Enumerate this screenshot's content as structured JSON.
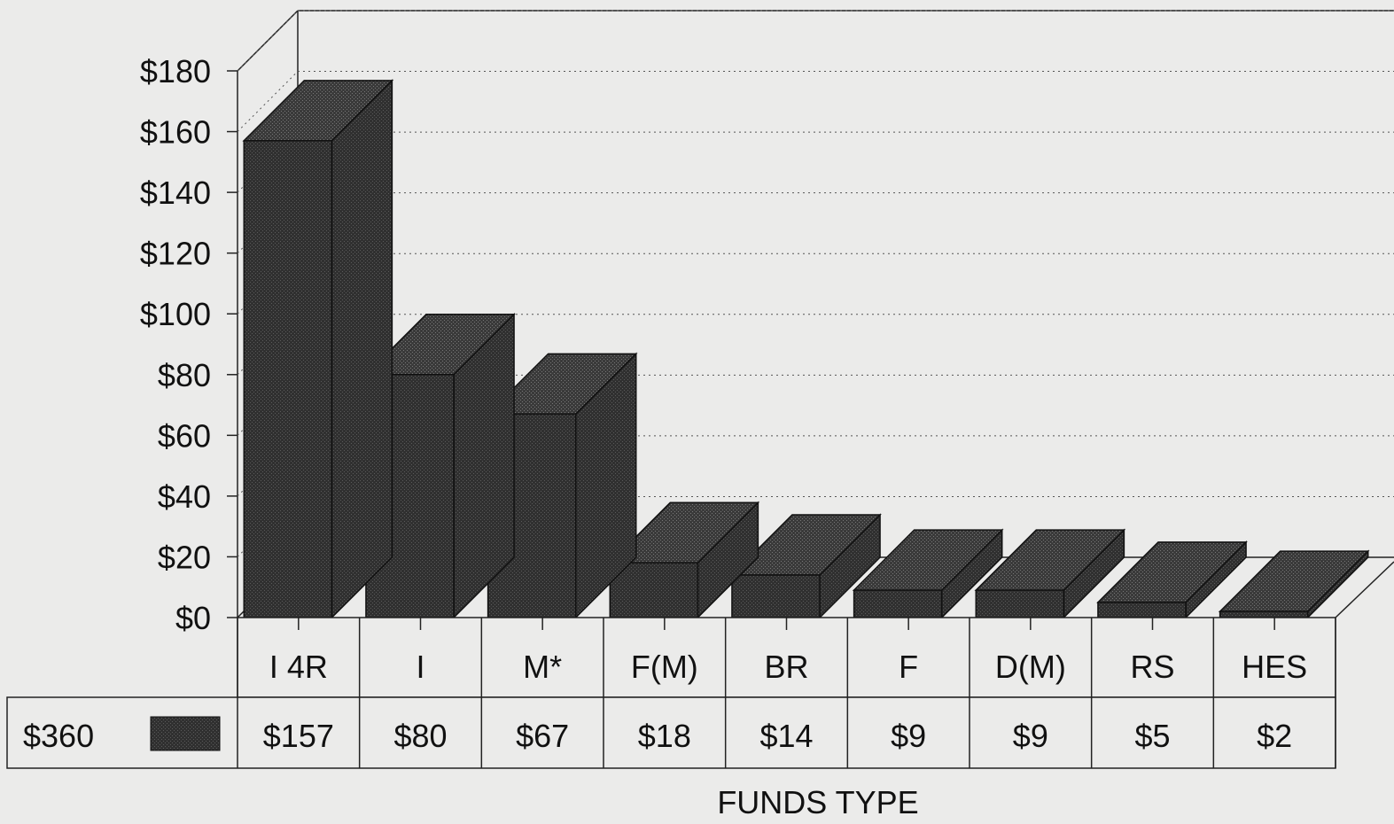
{
  "chart_data": {
    "type": "bar",
    "style": "3d",
    "categories": [
      "I 4R",
      "I",
      "M*",
      "F(M)",
      "BR",
      "F",
      "D(M)",
      "RS",
      "HES"
    ],
    "value_labels": [
      "$157",
      "$80",
      "$67",
      "$18",
      "$14",
      "$9",
      "$9",
      "$5",
      "$2"
    ],
    "series": [
      {
        "total_label": "$360",
        "values": [
          157,
          80,
          67,
          18,
          14,
          9,
          9,
          5,
          2
        ]
      }
    ],
    "y_ticks": [
      "$0",
      "$20",
      "$40",
      "$60",
      "$80",
      "$100",
      "$120",
      "$140",
      "$160",
      "$180"
    ],
    "ylim": [
      0,
      180
    ],
    "xlabel": "FUNDS TYPE",
    "ylabel": "",
    "grid": true,
    "grid_style": "dotted",
    "data_table": true,
    "colors": {
      "bar": "#2e2e2e",
      "bar_top": "#3c3c3c",
      "bar_side": "#1e1e1e",
      "background": "#ebebea",
      "line": "#222222"
    }
  }
}
